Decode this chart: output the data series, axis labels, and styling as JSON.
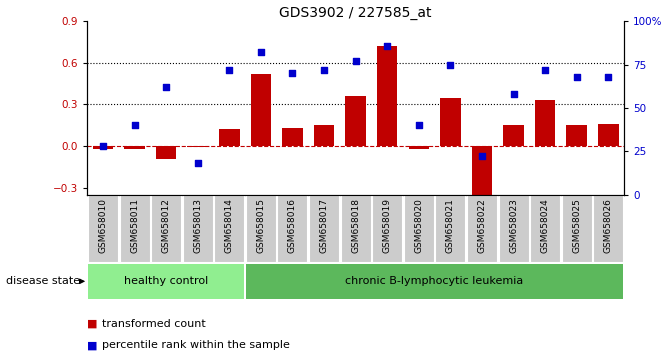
{
  "title": "GDS3902 / 227585_at",
  "samples": [
    "GSM658010",
    "GSM658011",
    "GSM658012",
    "GSM658013",
    "GSM658014",
    "GSM658015",
    "GSM658016",
    "GSM658017",
    "GSM658018",
    "GSM658019",
    "GSM658020",
    "GSM658021",
    "GSM658022",
    "GSM658023",
    "GSM658024",
    "GSM658025",
    "GSM658026"
  ],
  "bar_values": [
    -0.02,
    -0.02,
    -0.09,
    -0.01,
    0.12,
    0.52,
    0.13,
    0.15,
    0.36,
    0.72,
    -0.02,
    0.35,
    -0.37,
    0.15,
    0.33,
    0.15,
    0.16
  ],
  "dot_values": [
    28,
    40,
    62,
    18,
    72,
    82,
    70,
    72,
    77,
    86,
    40,
    75,
    22,
    58,
    72,
    68,
    68
  ],
  "ylim_left": [
    -0.35,
    0.9
  ],
  "ylim_right": [
    0,
    100
  ],
  "yticks_left": [
    -0.3,
    0.0,
    0.3,
    0.6,
    0.9
  ],
  "yticks_right": [
    0,
    25,
    50,
    75,
    100
  ],
  "hlines": [
    0.3,
    0.6
  ],
  "bar_color": "#C00000",
  "dot_color": "#0000CD",
  "zero_line_color": "#C00000",
  "hline_color": "#000000",
  "healthy_label": "healthy control",
  "leukemia_label": "chronic B-lymphocytic leukemia",
  "disease_state_label": "disease state",
  "legend_bar_label": "transformed count",
  "legend_dot_label": "percentile rank within the sample",
  "healthy_bg": "#90EE90",
  "leukemia_bg": "#5CB85C",
  "tick_bg": "#CCCCCC",
  "n_healthy": 5,
  "n_total": 17,
  "title_fontsize": 10,
  "tick_fontsize": 6.5,
  "label_fontsize": 8
}
